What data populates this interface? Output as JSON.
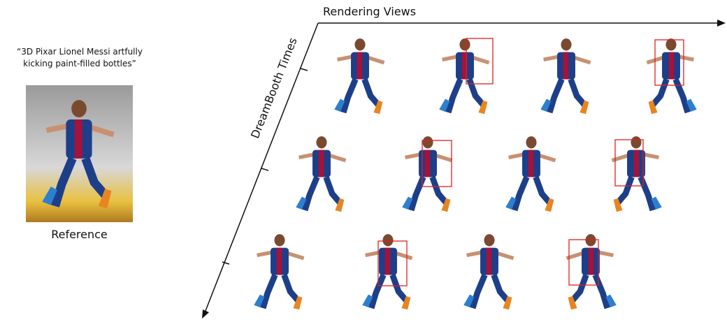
{
  "reference": {
    "prompt": "“3D Pixar Lionel Messi artfully kicking paint-filled bottles”",
    "label": "Reference"
  },
  "axes": {
    "horizontal": "Rendering Views",
    "diagonal": "DreamBooth Times"
  }
}
